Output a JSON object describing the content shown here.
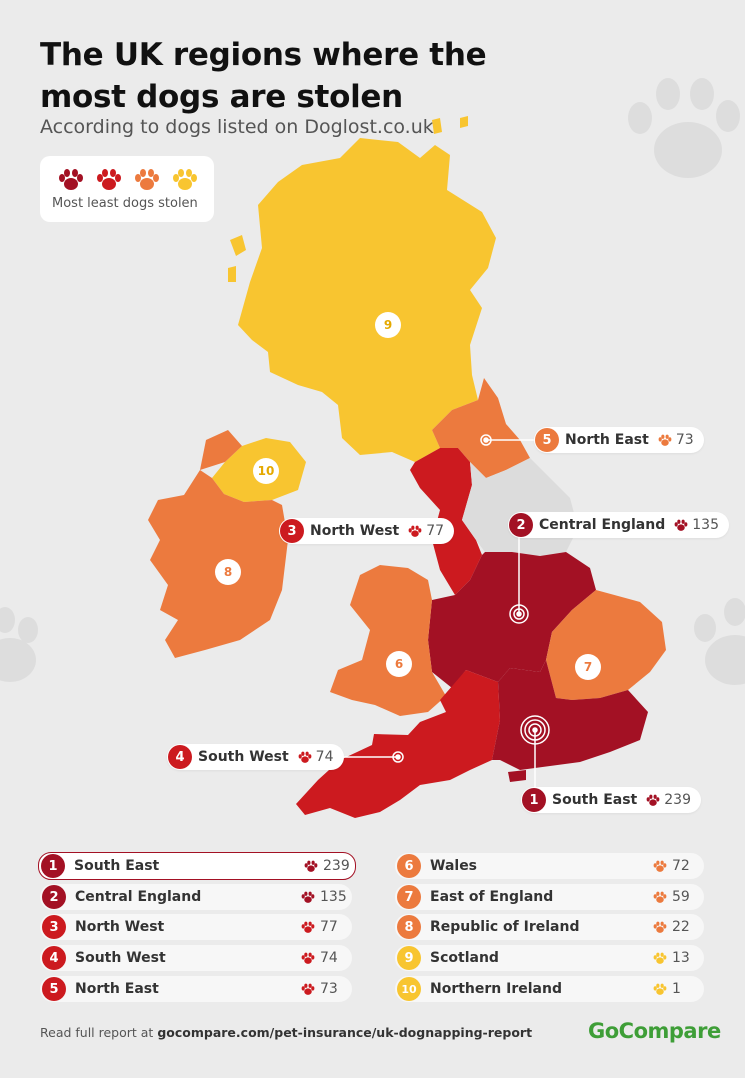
{
  "header": {
    "title": "The UK regions where the most dogs are stolen",
    "subtitle": "According to dogs listed on Doglost.co.uk"
  },
  "legend": {
    "label": "Most least dogs stolen",
    "colors": [
      "#a31124",
      "#cc1a1f",
      "#ec7a3e",
      "#f8c530"
    ]
  },
  "colors": {
    "rank1": "#a31124",
    "rank2": "#a31124",
    "rank3": "#cc1a1f",
    "rank4": "#cc1a1f",
    "rank5": "#ec7a3e",
    "rank6": "#ec7a3e",
    "rank7": "#ec7a3e",
    "rank8": "#ec7a3e",
    "rank9": "#f8c530",
    "rank10": "#f8c530",
    "grey_region": "#dcdcdc",
    "brand": "#3e9e37"
  },
  "map": {
    "labels": {
      "scotland": "9",
      "ni": "10",
      "roi": "8",
      "wales": "6",
      "east": "7"
    },
    "callouts": [
      {
        "rank": "5",
        "name": "North East",
        "count": "73",
        "icon": "paw-icon"
      },
      {
        "rank": "2",
        "name": "Central England",
        "count": "135",
        "icon": "paw-icon"
      },
      {
        "rank": "3",
        "name": "North West",
        "count": "77",
        "icon": "paw-icon"
      },
      {
        "rank": "4",
        "name": "South West",
        "count": "74",
        "icon": "paw-icon"
      },
      {
        "rank": "1",
        "name": "South East",
        "count": "239",
        "icon": "paw-icon"
      }
    ]
  },
  "ranking": [
    {
      "rank": "1",
      "name": "South East",
      "count": "239"
    },
    {
      "rank": "2",
      "name": "Central England",
      "count": "135"
    },
    {
      "rank": "3",
      "name": "North West",
      "count": "77"
    },
    {
      "rank": "4",
      "name": "South West",
      "count": "74"
    },
    {
      "rank": "5",
      "name": "North East",
      "count": "73"
    },
    {
      "rank": "6",
      "name": "Wales",
      "count": "72"
    },
    {
      "rank": "7",
      "name": "East of England",
      "count": "59"
    },
    {
      "rank": "8",
      "name": "Republic of Ireland",
      "count": "22"
    },
    {
      "rank": "9",
      "name": "Scotland",
      "count": "13"
    },
    {
      "rank": "10",
      "name": "Northern Ireland",
      "count": "1"
    }
  ],
  "footer": {
    "prefix": "Read full report at",
    "link": "gocompare.com/pet-insurance/uk-dognapping-report",
    "brand": "GoCompare"
  }
}
